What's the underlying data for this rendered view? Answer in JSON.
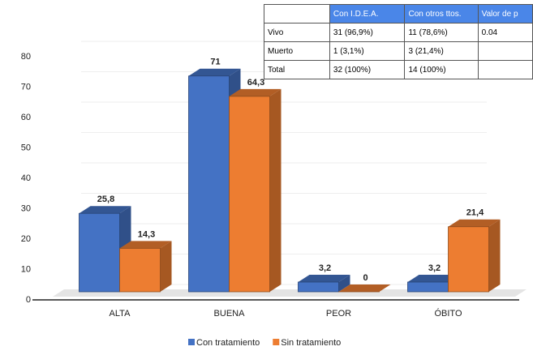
{
  "chart_data": {
    "type": "bar3d",
    "categories": [
      "ALTA",
      "BUENA",
      "PEOR",
      "ÓBITO"
    ],
    "series": [
      {
        "name": "Con tratamiento",
        "color": "#4472c4",
        "values": [
          25.8,
          71,
          3.2,
          3.2
        ],
        "value_labels": [
          "25,8",
          "71",
          "3,2",
          "3,2"
        ]
      },
      {
        "name": "Sin tratamiento",
        "color": "#ed7d31",
        "values": [
          14.3,
          64.3,
          0,
          21.4
        ],
        "value_labels": [
          "14,3",
          "64,3",
          "0",
          "21,4"
        ]
      }
    ],
    "ylim": [
      0,
      80
    ],
    "yticks": [
      0,
      10,
      20,
      30,
      40,
      50,
      60,
      70,
      80
    ],
    "grid": true,
    "legend": "bottom"
  },
  "table": {
    "header": [
      "Con I.D.E.A.",
      "Con otros ttos.",
      "Valor de p"
    ],
    "rows": [
      [
        "Vivo",
        "31 (96,9%)",
        "11 (78,6%)",
        "0.04"
      ],
      [
        "Muerto",
        "1 (3,1%)",
        "3 (21,4%)"
      ],
      [
        "Total",
        "32 (100%)",
        "14 (100%)"
      ]
    ]
  }
}
